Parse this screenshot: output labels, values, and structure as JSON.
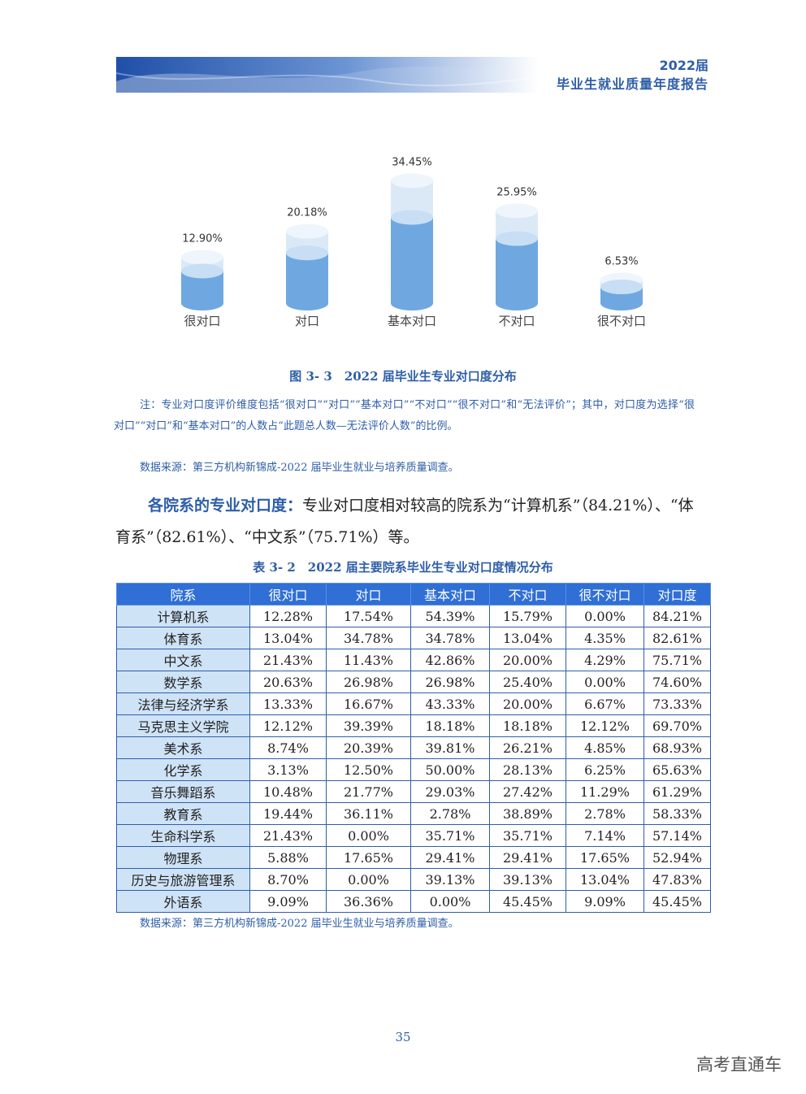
{
  "header": {
    "year": "2022届",
    "title": "毕业生就业质量年度报告"
  },
  "chart_data": {
    "type": "bar",
    "categories": [
      "很对口",
      "对口",
      "基本对口",
      "不对口",
      "很不对口"
    ],
    "values": [
      12.9,
      20.18,
      34.45,
      25.95,
      6.53
    ],
    "value_labels": [
      "12.90%",
      "20.18%",
      "34.45%",
      "25.95%",
      "6.53%"
    ],
    "ylim": [
      0,
      40
    ],
    "style": "cylinder",
    "colors": {
      "body": "#6fa8e0",
      "top": "#c8def5",
      "light": "#dbe9f7"
    }
  },
  "figure": {
    "caption": "图 3- 3　2022 届毕业生专业对口度分布"
  },
  "note": "注：专业对口度评价维度包括“很对口”“对口”“基本对口”“不对口”“很不对口”和“无法评价”；其中，对口度为选择“很对口”“对口”和“基本对口”的人数占“此题总人数—无法评价人数”的比例。",
  "source1": "数据来源：第三方机构新锦成-2022 届毕业生就业与培养质量调查。",
  "paragraph": {
    "lead": "各院系的专业对口度：",
    "body": "专业对口度相对较高的院系为“计算机系”（84.21%）、“体育系”（82.61%）、“中文系”（75.71%）等。"
  },
  "table": {
    "caption": "表 3- 2　2022 届主要院系毕业生专业对口度情况分布",
    "headers": [
      "院系",
      "很对口",
      "对口",
      "基本对口",
      "不对口",
      "很不对口",
      "对口度"
    ],
    "rows": [
      [
        "计算机系",
        "12.28%",
        "17.54%",
        "54.39%",
        "15.79%",
        "0.00%",
        "84.21%"
      ],
      [
        "体育系",
        "13.04%",
        "34.78%",
        "34.78%",
        "13.04%",
        "4.35%",
        "82.61%"
      ],
      [
        "中文系",
        "21.43%",
        "11.43%",
        "42.86%",
        "20.00%",
        "4.29%",
        "75.71%"
      ],
      [
        "数学系",
        "20.63%",
        "26.98%",
        "26.98%",
        "25.40%",
        "0.00%",
        "74.60%"
      ],
      [
        "法律与经济学系",
        "13.33%",
        "16.67%",
        "43.33%",
        "20.00%",
        "6.67%",
        "73.33%"
      ],
      [
        "马克思主义学院",
        "12.12%",
        "39.39%",
        "18.18%",
        "18.18%",
        "12.12%",
        "69.70%"
      ],
      [
        "美术系",
        "8.74%",
        "20.39%",
        "39.81%",
        "26.21%",
        "4.85%",
        "68.93%"
      ],
      [
        "化学系",
        "3.13%",
        "12.50%",
        "50.00%",
        "28.13%",
        "6.25%",
        "65.63%"
      ],
      [
        "音乐舞蹈系",
        "10.48%",
        "21.77%",
        "29.03%",
        "27.42%",
        "11.29%",
        "61.29%"
      ],
      [
        "教育系",
        "19.44%",
        "36.11%",
        "2.78%",
        "38.89%",
        "2.78%",
        "58.33%"
      ],
      [
        "生命科学系",
        "21.43%",
        "0.00%",
        "35.71%",
        "35.71%",
        "7.14%",
        "57.14%"
      ],
      [
        "物理系",
        "5.88%",
        "17.65%",
        "29.41%",
        "29.41%",
        "17.65%",
        "52.94%"
      ],
      [
        "历史与旅游管理系",
        "8.70%",
        "0.00%",
        "39.13%",
        "39.13%",
        "13.04%",
        "47.83%"
      ],
      [
        "外语系",
        "9.09%",
        "36.36%",
        "0.00%",
        "45.45%",
        "9.09%",
        "45.45%"
      ]
    ]
  },
  "source2": "数据来源：第三方机构新锦成-2022 届毕业生就业与培养质量调查。",
  "page_number": "35",
  "watermark": "高考直通车"
}
